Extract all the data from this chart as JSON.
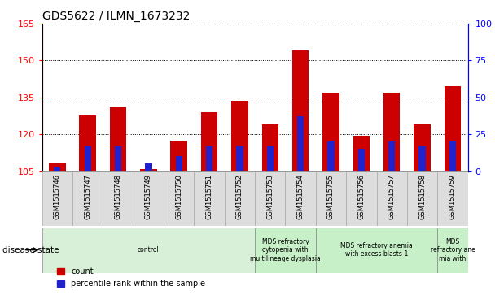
{
  "title": "GDS5622 / ILMN_1673232",
  "samples": [
    "GSM1515746",
    "GSM1515747",
    "GSM1515748",
    "GSM1515749",
    "GSM1515750",
    "GSM1515751",
    "GSM1515752",
    "GSM1515753",
    "GSM1515754",
    "GSM1515755",
    "GSM1515756",
    "GSM1515757",
    "GSM1515758",
    "GSM1515759"
  ],
  "count_values": [
    108.5,
    127.5,
    131.0,
    105.8,
    117.5,
    129.0,
    133.5,
    124.0,
    154.0,
    137.0,
    119.5,
    137.0,
    124.0,
    139.5
  ],
  "percentile_values": [
    3,
    17,
    17,
    5,
    10,
    17,
    17,
    17,
    37,
    20,
    15,
    20,
    17,
    20
  ],
  "ylim_left": [
    105,
    165
  ],
  "ylim_right": [
    0,
    100
  ],
  "yticks_left": [
    105,
    120,
    135,
    150,
    165
  ],
  "yticks_right": [
    0,
    25,
    50,
    75,
    100
  ],
  "bar_color": "#cc0000",
  "percentile_color": "#2222cc",
  "bar_width": 0.55,
  "pct_bar_width": 0.22,
  "disease_groups": [
    {
      "label": "control",
      "start": 0,
      "end": 7,
      "color": "#d8f0d8"
    },
    {
      "label": "MDS refractory\ncytopenia with\nmultilineage dysplasia",
      "start": 7,
      "end": 9,
      "color": "#c8f0c8"
    },
    {
      "label": "MDS refractory anemia\nwith excess blasts-1",
      "start": 9,
      "end": 13,
      "color": "#c8f0c8"
    },
    {
      "label": "MDS\nrefractory ane\nmia with",
      "start": 13,
      "end": 14,
      "color": "#c8f0c8"
    }
  ],
  "disease_state_label": "disease state",
  "legend_count_label": "count",
  "legend_percentile_label": "percentile rank within the sample",
  "count_base": 105,
  "bg_color": "#dddddd"
}
